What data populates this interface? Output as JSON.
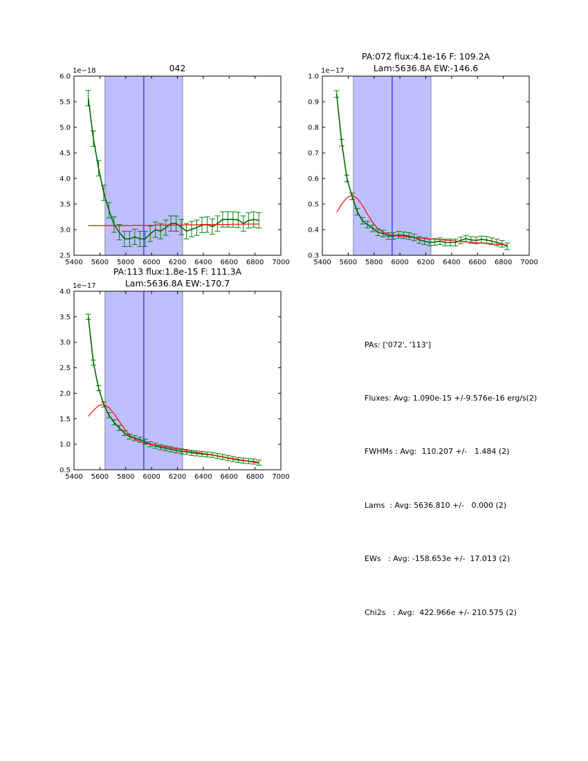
{
  "chart_data": [
    {
      "type": "line",
      "title": "042",
      "title_line2": "",
      "offset_label": "1e−18",
      "xlim": [
        5400,
        7000
      ],
      "xticks": [
        5400,
        5600,
        5800,
        6000,
        6200,
        6400,
        6600,
        6800,
        7000
      ],
      "ylim": [
        2.5,
        6.0
      ],
      "yticks": [
        "2.5",
        "3.0",
        "3.5",
        "4.0",
        "4.5",
        "5.0",
        "5.5",
        "6.0"
      ],
      "band": [
        5640,
        6240
      ],
      "vline": 5940,
      "x": [
        5510,
        5550,
        5590,
        5630,
        5670,
        5710,
        5750,
        5790,
        5830,
        5870,
        5910,
        5950,
        5990,
        6030,
        6070,
        6110,
        6150,
        6190,
        6230,
        6270,
        6310,
        6350,
        6390,
        6430,
        6470,
        6510,
        6550,
        6590,
        6630,
        6670,
        6710,
        6750,
        6790,
        6830
      ],
      "series": [
        {
          "name": "data",
          "color": "#006400",
          "errcolor": "#008000",
          "err": 0.15,
          "values": [
            5.57,
            4.78,
            4.2,
            3.72,
            3.38,
            3.1,
            2.95,
            2.82,
            2.82,
            2.86,
            2.82,
            2.82,
            2.92,
            3.0,
            2.97,
            3.04,
            3.12,
            3.12,
            3.05,
            2.97,
            3.01,
            3.04,
            3.09,
            3.1,
            3.06,
            3.12,
            3.2,
            3.2,
            3.2,
            3.19,
            3.12,
            3.18,
            3.2,
            3.18
          ]
        },
        {
          "name": "fit",
          "color": "#ff0000",
          "values": [
            3.08,
            3.08,
            3.08,
            3.08,
            3.08,
            3.08,
            3.08,
            3.08,
            3.08,
            3.085,
            3.085,
            3.085,
            3.085,
            3.09,
            3.09,
            3.09,
            3.09,
            3.09,
            3.09,
            3.095,
            3.095,
            3.095,
            3.1,
            3.1,
            3.1,
            3.1,
            3.1,
            3.1,
            3.105,
            3.105,
            3.105,
            3.11,
            3.11,
            3.11
          ]
        }
      ]
    },
    {
      "type": "line",
      "title": "PA:072 flux:4.1e-16 F: 109.2A",
      "title_line2": "Lam:5636.8A EW:-146.6",
      "offset_label": "1e−17",
      "xlim": [
        5400,
        7000
      ],
      "xticks": [
        5400,
        5600,
        5800,
        6000,
        6200,
        6400,
        6600,
        6800,
        7000
      ],
      "ylim": [
        0.3,
        1.0
      ],
      "yticks": [
        "0.3",
        "0.4",
        "0.5",
        "0.6",
        "0.7",
        "0.8",
        "0.9",
        "1.0"
      ],
      "band": [
        5640,
        6240
      ],
      "vline": 5940,
      "x": [
        5510,
        5550,
        5590,
        5630,
        5670,
        5710,
        5750,
        5790,
        5830,
        5870,
        5910,
        5950,
        5990,
        6030,
        6070,
        6110,
        6150,
        6190,
        6230,
        6270,
        6310,
        6350,
        6390,
        6430,
        6470,
        6510,
        6550,
        6590,
        6630,
        6670,
        6710,
        6750,
        6790,
        6830
      ],
      "series": [
        {
          "name": "data",
          "color": "#006400",
          "errcolor": "#008000",
          "err": 0.013,
          "values": [
            0.93,
            0.74,
            0.6,
            0.53,
            0.47,
            0.435,
            0.42,
            0.405,
            0.39,
            0.385,
            0.375,
            0.375,
            0.38,
            0.378,
            0.375,
            0.37,
            0.36,
            0.355,
            0.35,
            0.352,
            0.355,
            0.35,
            0.35,
            0.35,
            0.358,
            0.365,
            0.36,
            0.358,
            0.362,
            0.36,
            0.355,
            0.35,
            0.345,
            0.335
          ]
        },
        {
          "name": "fit",
          "color": "#ff0000",
          "values": [
            0.468,
            0.5,
            0.525,
            0.535,
            0.522,
            0.495,
            0.46,
            0.428,
            0.403,
            0.39,
            0.382,
            0.378,
            0.375,
            0.373,
            0.371,
            0.369,
            0.368,
            0.366,
            0.364,
            0.363,
            0.361,
            0.359,
            0.358,
            0.356,
            0.354,
            0.353,
            0.351,
            0.349,
            0.348,
            0.346,
            0.344,
            0.343,
            0.341,
            0.34
          ]
        }
      ]
    },
    {
      "type": "line",
      "title": "PA:113 flux:1.8e-15 F: 111.3A",
      "title_line2": "Lam:5636.8A EW:-170.7",
      "offset_label": "1e−17",
      "xlim": [
        5400,
        7000
      ],
      "xticks": [
        5400,
        5600,
        5800,
        6000,
        6200,
        6400,
        6600,
        6800,
        7000
      ],
      "ylim": [
        0.5,
        4.0
      ],
      "yticks": [
        "0.5",
        "1.0",
        "1.5",
        "2.0",
        "2.5",
        "3.0",
        "3.5",
        "4.0"
      ],
      "band": [
        5640,
        6240
      ],
      "vline": 5940,
      "x": [
        5510,
        5550,
        5590,
        5630,
        5670,
        5710,
        5750,
        5790,
        5830,
        5870,
        5910,
        5950,
        5990,
        6030,
        6070,
        6110,
        6150,
        6190,
        6230,
        6270,
        6310,
        6350,
        6390,
        6430,
        6470,
        6510,
        6550,
        6590,
        6630,
        6670,
        6710,
        6750,
        6790,
        6830
      ],
      "series": [
        {
          "name": "data",
          "color": "#006400",
          "errcolor": "#008000",
          "err": 0.05,
          "values": [
            3.5,
            2.6,
            2.1,
            1.78,
            1.57,
            1.43,
            1.32,
            1.22,
            1.15,
            1.12,
            1.09,
            1.05,
            1.0,
            0.97,
            0.94,
            0.92,
            0.9,
            0.88,
            0.86,
            0.85,
            0.83,
            0.82,
            0.81,
            0.8,
            0.79,
            0.77,
            0.75,
            0.73,
            0.71,
            0.69,
            0.68,
            0.67,
            0.66,
            0.64
          ]
        },
        {
          "name": "fit",
          "color": "#ff0000",
          "values": [
            1.55,
            1.66,
            1.76,
            1.78,
            1.72,
            1.6,
            1.45,
            1.3,
            1.18,
            1.1,
            1.05,
            1.02,
            1.0,
            0.982,
            0.965,
            0.947,
            0.93,
            0.912,
            0.895,
            0.877,
            0.86,
            0.842,
            0.824,
            0.807,
            0.789,
            0.772,
            0.754,
            0.736,
            0.719,
            0.701,
            0.684,
            0.666,
            0.648,
            0.63
          ]
        }
      ]
    }
  ],
  "stats": {
    "lines": [
      "PAs: ['072', '113']",
      "Fluxes: Avg: 1.090e-15 +/-9.576e-16 erg/s(2)",
      "FWHMs : Avg:  110.207 +/-   1.484 (2)",
      "Lams  : Avg: 5636.810 +/-   0.000 (2)",
      "EWs   : Avg: -158.653e +/-  17.013 (2)",
      "Chi2s   : Avg:  422.966e +/- 210.575 (2)"
    ]
  },
  "colors": {
    "band": "#bfbfff",
    "band_edge": "#8080a0",
    "vline": "#0000ff"
  }
}
